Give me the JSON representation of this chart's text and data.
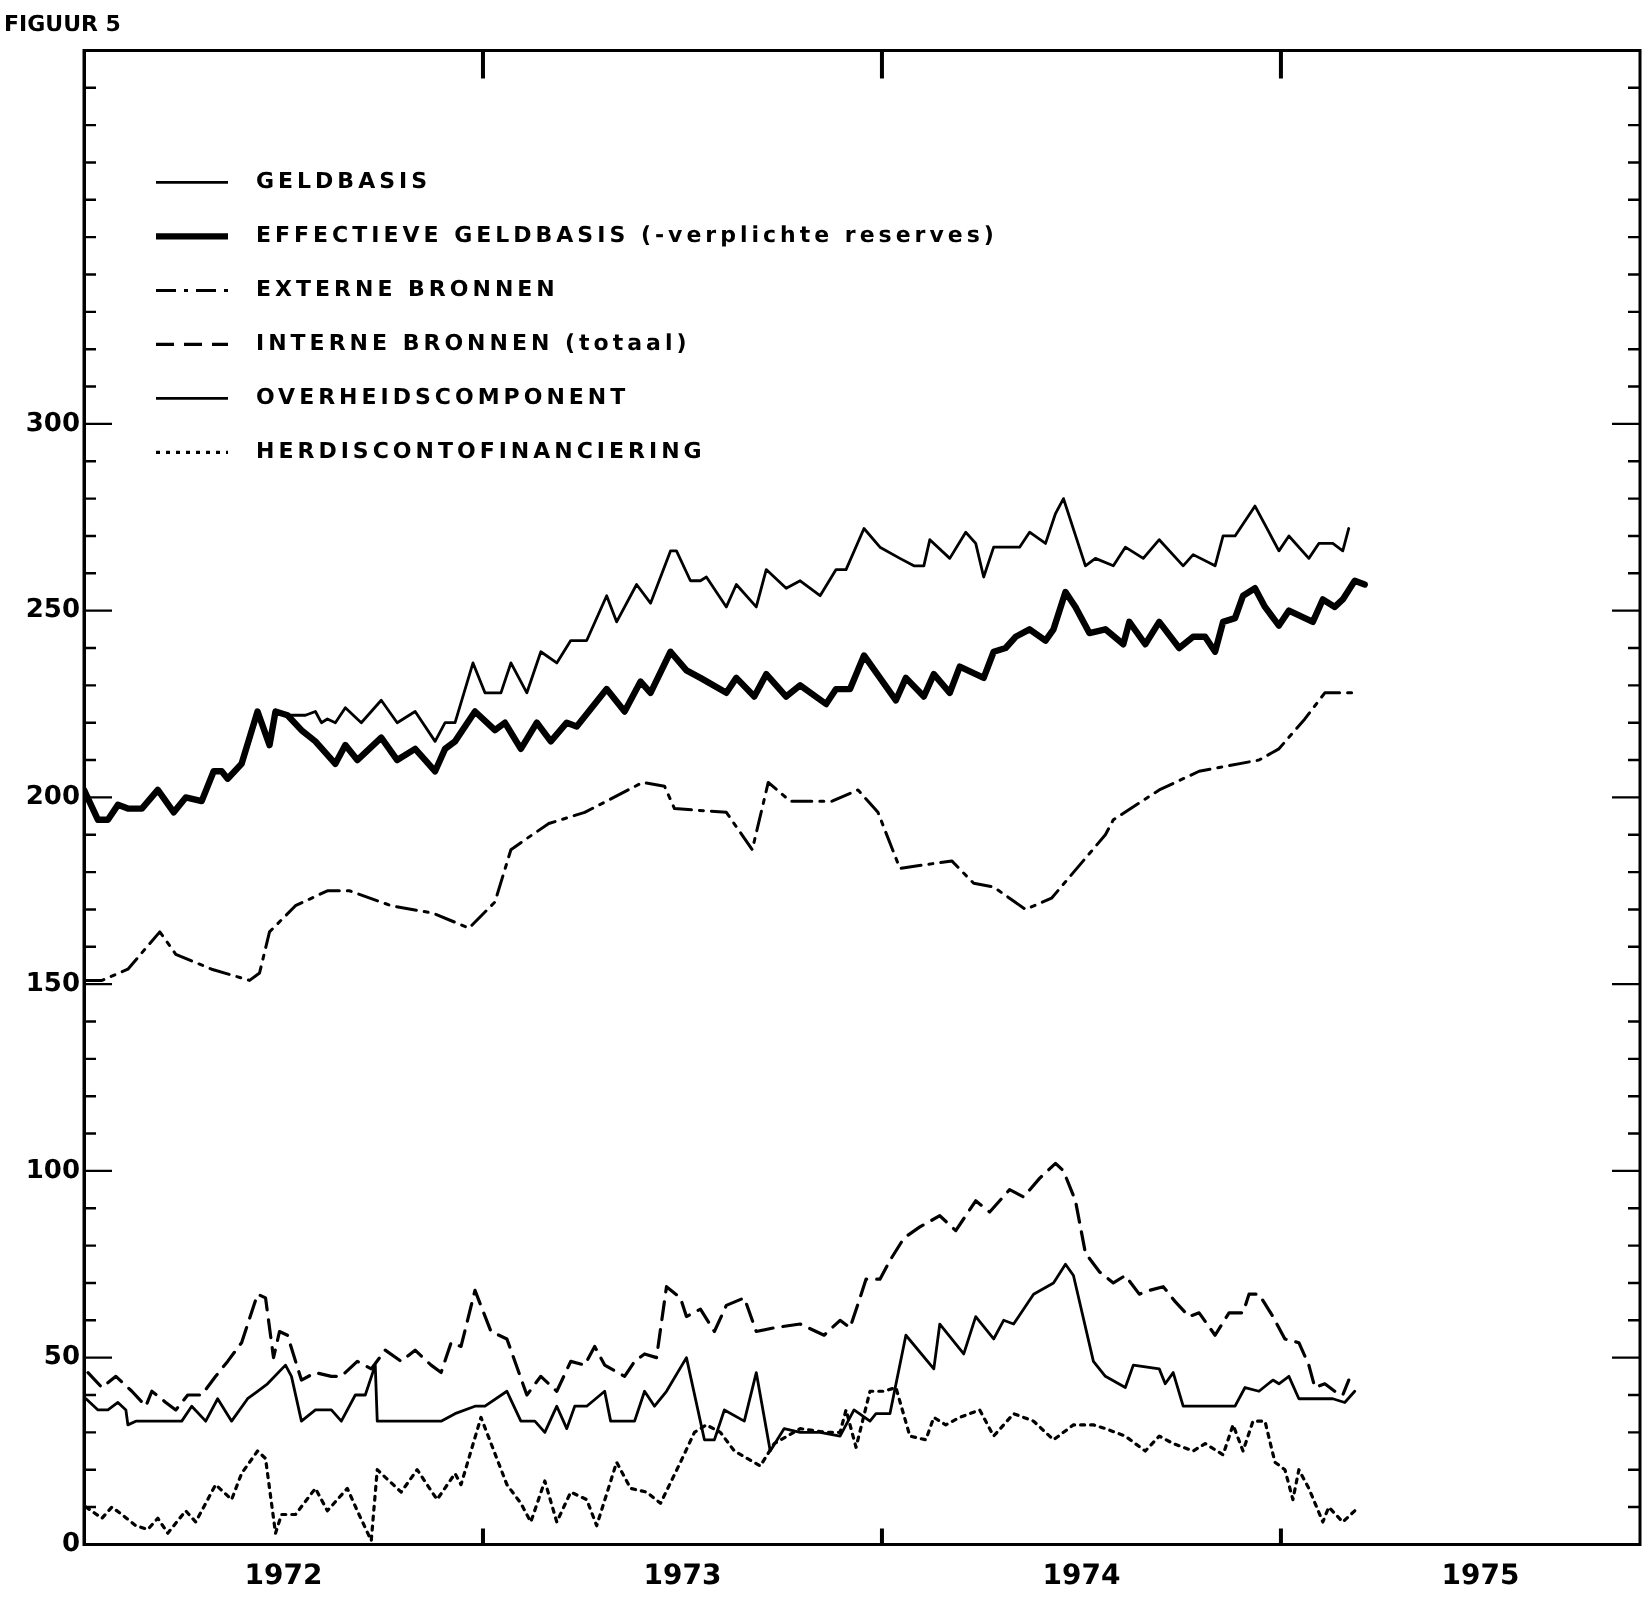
{
  "chart_data": {
    "type": "line",
    "title": "FIGUUR 5",
    "legend": "top left",
    "grid": false,
    "marker": "none",
    "xlim": [
      1972,
      1975.9
    ],
    "xticks": [
      {
        "value": 1972.5,
        "label": "1972"
      },
      {
        "value": 1973,
        "label": null
      },
      {
        "value": 1973.5,
        "label": "1973"
      },
      {
        "value": 1974,
        "label": null
      },
      {
        "value": 1974.5,
        "label": "1974"
      },
      {
        "value": 1975,
        "label": null
      },
      {
        "value": 1975.5,
        "label": "1975"
      }
    ],
    "ylim": [
      0,
      400
    ],
    "yticks": [
      0,
      {
        "value": 10,
        "label": null
      },
      {
        "value": 20,
        "label": null
      },
      {
        "value": 30,
        "label": null
      },
      {
        "value": 40,
        "label": null
      },
      50,
      {
        "value": 60,
        "label": null
      },
      {
        "value": 70,
        "label": null
      },
      {
        "value": 80,
        "label": null
      },
      {
        "value": 90,
        "label": null
      },
      100,
      {
        "value": 110,
        "label": null
      },
      {
        "value": 120,
        "label": null
      },
      {
        "value": 130,
        "label": null
      },
      {
        "value": 140,
        "label": null
      },
      150,
      {
        "value": 160,
        "label": null
      },
      {
        "value": 170,
        "label": null
      },
      {
        "value": 180,
        "label": null
      },
      {
        "value": 190,
        "label": null
      },
      200,
      {
        "value": 210,
        "label": null
      },
      {
        "value": 220,
        "label": null
      },
      {
        "value": 230,
        "label": null
      },
      {
        "value": 240,
        "label": null
      },
      250,
      {
        "value": 260,
        "label": null
      },
      {
        "value": 270,
        "label": null
      },
      {
        "value": 280,
        "label": null
      },
      {
        "value": 290,
        "label": null
      },
      300,
      {
        "value": 310,
        "label": null
      },
      {
        "value": 320,
        "label": null
      },
      {
        "value": 330,
        "label": null
      },
      {
        "value": 340,
        "label": null
      },
      {
        "value": 350,
        "label": null
      },
      {
        "value": 360,
        "label": null
      },
      {
        "value": 370,
        "label": null
      },
      {
        "value": 380,
        "label": null
      },
      {
        "value": 390,
        "label": null
      }
    ],
    "series": [
      {
        "name": "GELDBASIS",
        "color": "#000000",
        "line_style": "solid",
        "x": [
          1972.0,
          1972.035,
          1972.06,
          1972.085,
          1972.11,
          1972.145,
          1972.185,
          1972.225,
          1972.255,
          1972.295,
          1972.325,
          1972.345,
          1972.36,
          1972.395,
          1972.435,
          1972.465,
          1972.48,
          1972.51,
          1972.555,
          1972.58,
          1972.595,
          1972.61,
          1972.63,
          1972.655,
          1972.695,
          1972.745,
          1972.785,
          1972.83,
          1972.88,
          1972.905,
          1972.93,
          1972.975,
          1973.005,
          1973.045,
          1973.07,
          1973.11,
          1973.145,
          1973.185,
          1973.22,
          1973.26,
          1973.31,
          1973.335,
          1973.385,
          1973.42,
          1973.47,
          1973.485,
          1973.52,
          1973.545,
          1973.56,
          1973.61,
          1973.635,
          1973.685,
          1973.71,
          1973.76,
          1973.795,
          1973.845,
          1973.885,
          1973.91,
          1973.955,
          1973.995,
          1974.045,
          1974.08,
          1974.105,
          1974.12,
          1974.17,
          1974.21,
          1974.235,
          1974.255,
          1974.28,
          1974.31,
          1974.345,
          1974.37,
          1974.41,
          1974.435,
          1974.455,
          1974.51,
          1974.535,
          1974.58,
          1974.61,
          1974.655,
          1974.695,
          1974.755,
          1974.78,
          1974.835,
          1974.855,
          1974.885,
          1974.935,
          1974.97,
          1974.995,
          1975.02,
          1975.07,
          1975.095,
          1975.13,
          1975.155,
          1975.17
        ],
        "values": [
          202,
          194,
          194,
          198,
          197,
          197,
          202,
          196,
          200,
          199,
          207,
          207,
          205,
          209,
          223,
          214,
          223,
          222,
          222,
          223,
          220,
          221,
          220,
          224,
          220,
          226,
          220,
          223,
          215,
          220,
          220,
          236,
          228,
          228,
          236,
          228,
          239,
          236,
          242,
          242,
          254,
          247,
          257,
          252,
          266,
          266,
          258,
          258,
          259,
          251,
          257,
          251,
          261,
          256,
          258,
          254,
          261,
          261,
          272,
          267,
          264,
          262,
          262,
          269,
          264,
          271,
          268,
          259,
          267,
          267,
          267,
          271,
          268,
          276,
          280,
          262,
          264,
          262,
          267,
          264,
          269,
          262,
          265,
          262,
          270,
          270,
          278,
          271,
          266,
          270,
          264,
          268,
          268,
          266,
          272
        ]
      },
      {
        "name": "EFFECTIEVE GELDBASIS (-verplichte reserves)",
        "color": "#000000",
        "line_style": "solid",
        "x": [
          1972.0,
          1972.035,
          1972.06,
          1972.085,
          1972.11,
          1972.145,
          1972.185,
          1972.225,
          1972.255,
          1972.295,
          1972.325,
          1972.345,
          1972.36,
          1972.395,
          1972.435,
          1972.465,
          1972.48,
          1972.51,
          1972.545,
          1972.58,
          1972.63,
          1972.655,
          1972.685,
          1972.745,
          1972.785,
          1972.83,
          1972.88,
          1972.905,
          1972.93,
          1972.98,
          1973.03,
          1973.055,
          1973.095,
          1973.135,
          1973.17,
          1973.21,
          1973.235,
          1973.31,
          1973.355,
          1973.395,
          1973.42,
          1973.47,
          1973.51,
          1973.545,
          1973.61,
          1973.635,
          1973.68,
          1973.71,
          1973.76,
          1973.795,
          1973.86,
          1973.885,
          1973.92,
          1973.955,
          1973.995,
          1974.035,
          1974.06,
          1974.105,
          1974.13,
          1974.17,
          1974.195,
          1974.255,
          1974.28,
          1974.31,
          1974.335,
          1974.37,
          1974.41,
          1974.43,
          1974.46,
          1974.485,
          1974.52,
          1974.56,
          1974.605,
          1974.62,
          1974.66,
          1974.695,
          1974.745,
          1974.78,
          1974.81,
          1974.835,
          1974.855,
          1974.885,
          1974.905,
          1974.935,
          1974.96,
          1974.995,
          1975.02,
          1975.08,
          1975.105,
          1975.135,
          1975.155,
          1975.185,
          1975.21
        ],
        "values": [
          202,
          194,
          194,
          198,
          197,
          197,
          202,
          196,
          200,
          199,
          207,
          207,
          205,
          209,
          223,
          214,
          223,
          222,
          218,
          215,
          209,
          214,
          210,
          216,
          210,
          213,
          207,
          213,
          215,
          223,
          218,
          220,
          213,
          220,
          215,
          220,
          219,
          229,
          223,
          231,
          228,
          239,
          234,
          232,
          228,
          232,
          227,
          233,
          227,
          230,
          225,
          229,
          229,
          238,
          232,
          226,
          232,
          227,
          233,
          228,
          235,
          232,
          239,
          240,
          243,
          245,
          242,
          245,
          255,
          251,
          244,
          245,
          241,
          247,
          241,
          247,
          240,
          243,
          243,
          239,
          247,
          248,
          254,
          256,
          251,
          246,
          250,
          247,
          253,
          251,
          253,
          258,
          257
        ]
      },
      {
        "name": "EXTERNE BRONNEN",
        "color": "#000000",
        "line_style": "dashdot",
        "x": [
          1972.0,
          1972.045,
          1972.11,
          1972.19,
          1972.23,
          1972.32,
          1972.415,
          1972.44,
          1972.465,
          1972.53,
          1972.61,
          1972.665,
          1972.77,
          1972.875,
          1972.965,
          1973.03,
          1973.07,
          1973.11,
          1973.165,
          1973.255,
          1973.31,
          1973.4,
          1973.455,
          1973.48,
          1973.61,
          1973.675,
          1973.715,
          1973.77,
          1973.875,
          1973.94,
          1973.99,
          1974.045,
          1974.175,
          1974.23,
          1974.28,
          1974.36,
          1974.425,
          1974.56,
          1974.58,
          1974.695,
          1974.795,
          1974.945,
          1974.995,
          1975.06,
          1975.11,
          1975.18
        ],
        "values": [
          151,
          151,
          154,
          164,
          158,
          154,
          151,
          153,
          164,
          171,
          175,
          175,
          171,
          169,
          165,
          172,
          186,
          189,
          193,
          196,
          199,
          204,
          203,
          197,
          196,
          186,
          204,
          199,
          199,
          202,
          196,
          181,
          183,
          177,
          176,
          170,
          173,
          190,
          194,
          202,
          207,
          210,
          213,
          221,
          228,
          228
        ]
      },
      {
        "name": "INTERNE BRONNEN (totaal)",
        "color": "#000000",
        "line_style": "dashed",
        "x": [
          1972.01,
          1972.045,
          1972.08,
          1972.12,
          1972.155,
          1972.17,
          1972.205,
          1972.23,
          1972.26,
          1972.295,
          1972.33,
          1972.36,
          1972.395,
          1972.435,
          1972.455,
          1972.475,
          1972.49,
          1972.51,
          1972.545,
          1972.58,
          1972.62,
          1972.645,
          1972.685,
          1972.72,
          1972.755,
          1972.795,
          1972.83,
          1972.87,
          1972.895,
          1972.92,
          1972.945,
          1972.98,
          1973.02,
          1973.06,
          1973.11,
          1973.145,
          1973.185,
          1973.22,
          1973.255,
          1973.28,
          1973.305,
          1973.355,
          1973.38,
          1973.405,
          1973.435,
          1973.46,
          1973.495,
          1973.51,
          1973.545,
          1973.58,
          1973.61,
          1973.655,
          1973.685,
          1973.73,
          1973.795,
          1973.855,
          1973.895,
          1973.92,
          1973.945,
          1973.96,
          1973.995,
          1974.02,
          1974.055,
          1974.095,
          1974.145,
          1974.185,
          1974.235,
          1974.27,
          1974.32,
          1974.355,
          1974.395,
          1974.435,
          1974.455,
          1974.485,
          1974.51,
          1974.545,
          1974.58,
          1974.61,
          1974.645,
          1974.67,
          1974.705,
          1974.735,
          1974.77,
          1974.795,
          1974.835,
          1974.87,
          1974.905,
          1974.92,
          1974.945,
          1974.98,
          1975.01,
          1975.045,
          1975.07,
          1975.085,
          1975.11,
          1975.135,
          1975.155,
          1975.17
        ],
        "values": [
          46,
          42,
          45,
          41,
          37,
          41,
          38,
          36,
          40,
          40,
          45,
          49,
          54,
          67,
          66,
          50,
          57,
          56,
          44,
          46,
          45,
          45,
          49,
          47,
          52,
          49,
          52,
          48,
          46,
          54,
          53,
          68,
          57,
          55,
          40,
          45,
          41,
          49,
          48,
          53,
          48,
          45,
          49,
          51,
          50,
          69,
          66,
          61,
          63,
          57,
          64,
          66,
          57,
          58,
          59,
          56,
          60,
          58,
          66,
          71,
          71,
          76,
          82,
          85,
          88,
          84,
          92,
          89,
          95,
          93,
          98,
          102,
          100,
          92,
          78,
          73,
          70,
          72,
          67,
          68,
          69,
          65,
          61,
          62,
          56,
          62,
          62,
          67,
          67,
          61,
          55,
          54,
          48,
          42,
          43,
          41,
          40,
          44
        ]
      },
      {
        "name": "OVERHEIDSCOMPONENT",
        "color": "#000000",
        "line_style": "solid",
        "x": [
          1972.005,
          1972.035,
          1972.06,
          1972.085,
          1972.105,
          1972.11,
          1972.13,
          1972.155,
          1972.245,
          1972.27,
          1972.305,
          1972.335,
          1972.37,
          1972.41,
          1972.46,
          1972.505,
          1972.52,
          1972.545,
          1972.58,
          1972.62,
          1972.645,
          1972.68,
          1972.705,
          1972.73,
          1972.735,
          1972.78,
          1972.895,
          1972.93,
          1972.98,
          1973.005,
          1973.06,
          1973.095,
          1973.13,
          1973.155,
          1973.185,
          1973.21,
          1973.23,
          1973.26,
          1973.305,
          1973.32,
          1973.38,
          1973.405,
          1973.43,
          1973.46,
          1973.51,
          1973.555,
          1973.58,
          1973.605,
          1973.655,
          1973.685,
          1973.72,
          1973.755,
          1973.795,
          1973.845,
          1973.895,
          1973.93,
          1973.97,
          1973.985,
          1974.02,
          1974.06,
          1974.13,
          1974.145,
          1974.205,
          1974.235,
          1974.28,
          1974.305,
          1974.33,
          1974.38,
          1974.43,
          1974.46,
          1974.48,
          1974.53,
          1974.56,
          1974.61,
          1974.63,
          1974.695,
          1974.71,
          1974.73,
          1974.755,
          1974.885,
          1974.91,
          1974.945,
          1974.98,
          1974.995,
          1975.02,
          1975.045,
          1975.13,
          1975.16,
          1975.185
        ],
        "values": [
          39,
          36,
          36,
          38,
          36,
          32,
          33,
          33,
          33,
          37,
          33,
          39,
          33,
          39,
          43,
          48,
          45,
          33,
          36,
          36,
          33,
          40,
          40,
          48,
          33,
          33,
          33,
          35,
          37,
          37,
          41,
          33,
          33,
          30,
          37,
          31,
          37,
          37,
          41,
          33,
          33,
          41,
          37,
          41,
          50,
          28,
          28,
          36,
          33,
          46,
          25,
          31,
          30,
          30,
          29,
          36,
          33,
          35,
          35,
          56,
          47,
          59,
          51,
          61,
          55,
          60,
          59,
          67,
          70,
          75,
          72,
          49,
          45,
          42,
          48,
          47,
          43,
          46,
          37,
          37,
          42,
          41,
          44,
          43,
          45,
          39,
          39,
          38,
          41
        ]
      },
      {
        "name": "HERDISCONTOFINANCIERING",
        "color": "#000000",
        "line_style": "dotted",
        "x": [
          1972.005,
          1972.045,
          1972.07,
          1972.095,
          1972.13,
          1972.16,
          1972.185,
          1972.21,
          1972.255,
          1972.28,
          1972.33,
          1972.37,
          1972.395,
          1972.435,
          1972.455,
          1972.48,
          1972.495,
          1972.53,
          1972.58,
          1972.61,
          1972.66,
          1972.685,
          1972.72,
          1972.735,
          1972.795,
          1972.835,
          1972.885,
          1972.93,
          1972.945,
          1972.995,
          1973.06,
          1973.095,
          1973.12,
          1973.155,
          1973.185,
          1973.22,
          1973.26,
          1973.285,
          1973.335,
          1973.37,
          1973.41,
          1973.445,
          1973.495,
          1973.53,
          1973.56,
          1973.595,
          1973.63,
          1973.695,
          1973.73,
          1973.795,
          1973.86,
          1973.895,
          1973.91,
          1973.935,
          1973.97,
          1974.005,
          1974.035,
          1974.07,
          1974.11,
          1974.13,
          1974.16,
          1974.195,
          1974.245,
          1974.28,
          1974.33,
          1974.38,
          1974.43,
          1974.48,
          1974.53,
          1974.56,
          1974.61,
          1974.66,
          1974.695,
          1974.73,
          1974.78,
          1974.81,
          1974.855,
          1974.88,
          1974.905,
          1974.93,
          1974.96,
          1974.985,
          1975.01,
          1975.03,
          1975.045,
          1975.07,
          1975.105,
          1975.12,
          1975.155,
          1975.185
        ],
        "values": [
          10,
          7,
          10,
          8,
          5,
          4,
          7,
          3,
          9,
          6,
          16,
          12,
          19,
          25,
          23,
          3,
          8,
          8,
          15,
          9,
          15,
          9,
          1,
          20,
          14,
          20,
          12,
          19,
          16,
          34,
          16,
          11,
          6,
          17,
          6,
          14,
          12,
          5,
          22,
          15,
          14,
          11,
          22,
          30,
          32,
          30,
          25,
          21,
          27,
          31,
          30,
          30,
          36,
          26,
          41,
          41,
          42,
          29,
          28,
          34,
          32,
          34,
          36,
          29,
          35,
          33,
          28,
          32,
          32,
          31,
          29,
          25,
          29,
          27,
          25,
          27,
          24,
          32,
          25,
          33,
          33,
          22,
          20,
          12,
          20,
          15,
          6,
          10,
          6,
          9
        ]
      }
    ]
  }
}
